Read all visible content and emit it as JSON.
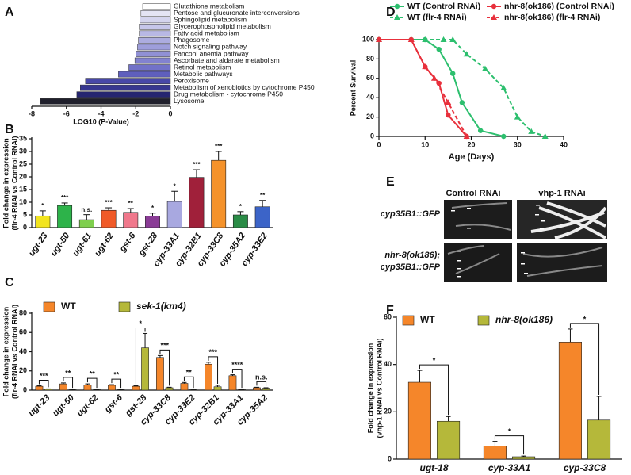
{
  "panel_labels": [
    "A",
    "B",
    "C",
    "D",
    "E",
    "F"
  ],
  "chart_data": [
    {
      "type": "hbar",
      "categories": [
        "Glutathione metabolism",
        "Pentose and glucuronate interconversions",
        "Sphingolipid metabolism",
        "Glycerophospholipid metabolism",
        "Fatty acid metabolism",
        "Phagosome",
        "Notch signaling pathway",
        "Fanconi anemia pathway",
        "Ascorbate and aldarate metabolism",
        "Retinol metabolism",
        "Metabolic pathways",
        "Peroxisome",
        "Metabolism of xenobiotics by cytochrome P450",
        "Drug metabolism - cytochrome P450",
        "Lysosome"
      ],
      "values": [
        -1.6,
        -1.7,
        -1.75,
        -1.8,
        -1.8,
        -1.85,
        -1.9,
        -2.0,
        -2.05,
        -2.4,
        -3.0,
        -4.9,
        -5.2,
        -5.4,
        -7.5
      ],
      "colors": [
        "#ffffff",
        "#e4e4f4",
        "#d4d4ee",
        "#c6c6ea",
        "#b8b8e4",
        "#acacdf",
        "#9e9eda",
        "#9090d5",
        "#8282cf",
        "#7272c8",
        "#5f5fbd",
        "#4848a8",
        "#373790",
        "#262670",
        "#20202c"
      ],
      "xlim": [
        -8,
        0
      ],
      "xticks": [
        -8,
        -6,
        -4,
        -2,
        0
      ],
      "xlabel": "LOG10 (P-Value)"
    },
    {
      "type": "bar",
      "categories": [
        "ugt-23",
        "ugt-50",
        "ugt-61",
        "ugt-62",
        "gst-6",
        "gst-28",
        "cyp-33A1",
        "cyp-32B1",
        "cyp-33C8",
        "cyp-35A2",
        "cyp-33E2"
      ],
      "values": [
        4.6,
        8.7,
        3.1,
        6.8,
        6.0,
        4.5,
        10.3,
        19.8,
        26.5,
        5.0,
        8.2
      ],
      "errors": [
        2.0,
        1.0,
        2.0,
        1.0,
        1.5,
        1.2,
        4.0,
        3.0,
        3.5,
        1.3,
        2.5
      ],
      "colors": [
        "#f2e41e",
        "#2db34a",
        "#7fcf4e",
        "#f05a28",
        "#f0788c",
        "#8a3c96",
        "#a8a8e0",
        "#a0203a",
        "#f5922a",
        "#2a8c46",
        "#3c64c8"
      ],
      "annotations": [
        "*",
        "***",
        "n.s.",
        "***",
        "**",
        "*",
        "*",
        "***",
        "***",
        "*",
        "**"
      ],
      "ylim": [
        0,
        35
      ],
      "yticks": [
        0,
        5,
        10,
        15,
        20,
        25,
        30,
        35
      ],
      "ylabel": [
        "Fold change in expression",
        "(flr-4 RNAi vs Control RNAi)"
      ]
    },
    {
      "type": "grouped_bar",
      "categories": [
        "ugt-23",
        "ugt-50",
        "ugt-62",
        "gst-6",
        "gst-28",
        "cyp-33C8",
        "cyp-33E2",
        "cyp-32B1",
        "cyp-33A1",
        "cyp-35A2"
      ],
      "series": [
        {
          "name": "WT",
          "color": "#f5862a",
          "values": [
            4,
            6.5,
            5.5,
            5,
            4,
            34,
            7,
            27,
            15,
            2.5
          ],
          "errors": [
            0.5,
            1,
            1,
            0.7,
            0.5,
            2,
            1,
            2,
            1,
            0.5
          ]
        },
        {
          "name": "sek-1(km4)",
          "color": "#b5b83a",
          "values": [
            1,
            0.5,
            0.5,
            0.5,
            44,
            2.5,
            0.5,
            3.5,
            0.5,
            2
          ],
          "errors": [
            0.3,
            0.2,
            0.2,
            0.2,
            15,
            0.5,
            0.2,
            1.5,
            0.2,
            0.5
          ]
        }
      ],
      "annotations": [
        "***",
        "**",
        "**",
        "**",
        "*",
        "***",
        "**",
        "***",
        "****",
        "n.s."
      ],
      "ylim": [
        0,
        80
      ],
      "yticks": [
        0,
        20,
        40,
        60,
        80
      ],
      "ylabel": [
        "Fold change in expression",
        "(flr-4 RNAi vs Control RNAi)"
      ]
    },
    {
      "type": "line",
      "series": [
        {
          "name": "WT (Control RNAi)",
          "color": "#2dbf6e",
          "dashed": false,
          "marker": "circle",
          "x": [
            0,
            7,
            10,
            13,
            16,
            18,
            22,
            27
          ],
          "values": [
            100,
            100,
            100,
            90,
            65,
            35,
            6,
            0
          ]
        },
        {
          "name": "WT (flr-4 RNAi)",
          "color": "#2dbf6e",
          "dashed": true,
          "marker": "triangle",
          "x": [
            0,
            10,
            14,
            16,
            19,
            23,
            27,
            30,
            33,
            36
          ],
          "values": [
            100,
            100,
            100,
            100,
            85,
            70,
            50,
            20,
            5,
            0
          ]
        },
        {
          "name": "nhr-8(ok186) (Control RNAi)",
          "color": "#e8303c",
          "dashed": false,
          "marker": "circle",
          "x": [
            0,
            7,
            10,
            13,
            15,
            19
          ],
          "values": [
            100,
            100,
            72,
            55,
            22,
            0
          ]
        },
        {
          "name": "nhr-8(ok186) (flr-4 RNAi)",
          "color": "#e8303c",
          "dashed": true,
          "marker": "triangle",
          "x": [
            0,
            7,
            10,
            12,
            15,
            19
          ],
          "values": [
            100,
            100,
            72,
            60,
            35,
            0
          ]
        }
      ],
      "xlim": [
        0,
        40
      ],
      "xticks": [
        0,
        10,
        20,
        30,
        40
      ],
      "ylim": [
        0,
        100
      ],
      "yticks": [
        0,
        20,
        40,
        60,
        80,
        100
      ],
      "xlabel": "Age (Days)",
      "ylabel": "Percent Survival"
    },
    {
      "type": "grouped_bar",
      "categories": [
        "ugt-18",
        "cyp-33A1",
        "cyp-33C8"
      ],
      "series": [
        {
          "name": "WT",
          "color": "#f5862a",
          "values": [
            32.5,
            5.5,
            49.5
          ],
          "errors": [
            5,
            2,
            5.5
          ]
        },
        {
          "name": "nhr-8(ok186)",
          "color": "#b5b83a",
          "values": [
            16,
            1,
            16.5
          ],
          "errors": [
            2,
            0.3,
            10
          ]
        }
      ],
      "annotations": [
        "*",
        "*",
        "*"
      ],
      "ylim": [
        0,
        60
      ],
      "yticks": [
        0,
        20,
        40,
        60
      ],
      "ylabel": [
        "Fold change in expression",
        "(vhp-1 RNAi vs Control RNAi)"
      ]
    }
  ],
  "micrographs": {
    "columns": [
      "Control RNAi",
      "vhp-1 RNAi"
    ],
    "rows": [
      [
        "cyp35B1::GFP"
      ],
      [
        "nhr-8(ok186);",
        "cyp35B1::GFP"
      ]
    ]
  }
}
